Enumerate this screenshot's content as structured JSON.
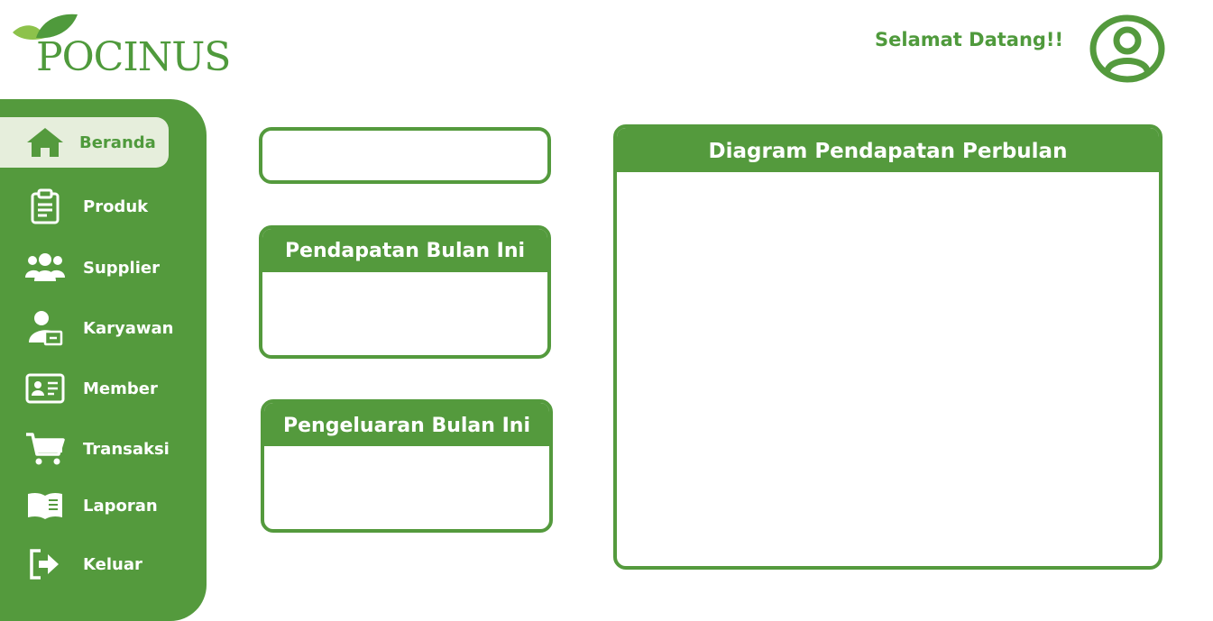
{
  "brand": {
    "logo_text": "POCINUS",
    "color": "#549a3d"
  },
  "header": {
    "welcome": "Selamat Datang!!",
    "avatar_icon": "user-circle-icon"
  },
  "sidebar": {
    "items": [
      {
        "label": "Beranda",
        "icon": "home-icon",
        "active": true
      },
      {
        "label": "Produk",
        "icon": "clipboard-icon"
      },
      {
        "label": "Supplier",
        "icon": "users-icon"
      },
      {
        "label": "Karyawan",
        "icon": "employee-icon"
      },
      {
        "label": "Member",
        "icon": "id-card-icon"
      },
      {
        "label": "Transaksi",
        "icon": "cart-icon"
      },
      {
        "label": "Laporan",
        "icon": "book-icon"
      },
      {
        "label": "Keluar",
        "icon": "logout-icon"
      }
    ]
  },
  "main": {
    "top_box_value": "",
    "income_title": "Pendapatan Bulan Ini",
    "income_value": "",
    "expense_title": "Pengeluaran Bulan Ini",
    "expense_value": "",
    "chart_title": "Diagram Pendapatan Perbulan"
  }
}
